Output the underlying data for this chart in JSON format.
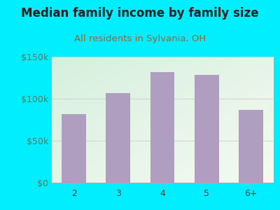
{
  "title": "Median family income by family size",
  "subtitle": "All residents in Sylvania, OH",
  "categories": [
    "2",
    "3",
    "4",
    "5",
    "6+"
  ],
  "values": [
    82000,
    107000,
    132000,
    128000,
    87000
  ],
  "bar_color": "#b09ec0",
  "ylim": [
    0,
    150000
  ],
  "yticks": [
    0,
    50000,
    100000,
    150000
  ],
  "ytick_labels": [
    "$0",
    "$50k",
    "$100k",
    "$150k"
  ],
  "background_outer": "#00eeff",
  "plot_bg_color_topleft": "#d8efe0",
  "plot_bg_color_bottomright": "#f5f8f0",
  "title_color": "#222222",
  "subtitle_color": "#996633",
  "ytick_color": "#557755",
  "xtick_color": "#444444",
  "title_fontsize": 12,
  "subtitle_fontsize": 9.5,
  "tick_fontsize": 9
}
